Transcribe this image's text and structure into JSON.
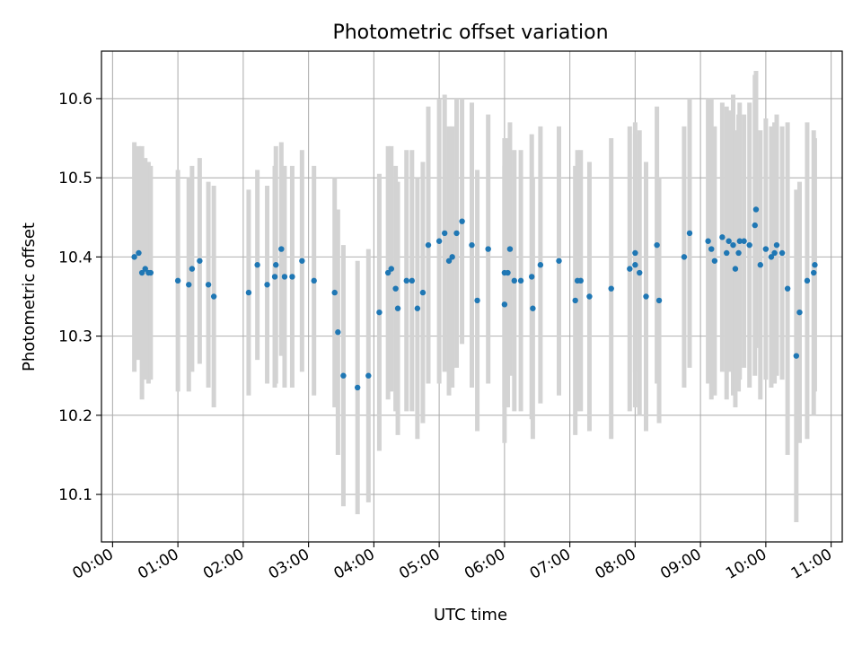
{
  "chart_data": {
    "type": "scatter",
    "title": "Photometric offset variation",
    "xlabel": "UTC time",
    "ylabel": "Photometric offset",
    "xlim": [
      "00:00",
      "11:00"
    ],
    "ylim": [
      10.04,
      10.66
    ],
    "grid": true,
    "x_ticks": [
      "00:00",
      "01:00",
      "02:00",
      "03:00",
      "04:00",
      "05:00",
      "06:00",
      "07:00",
      "08:00",
      "09:00",
      "10:00",
      "11:00"
    ],
    "y_ticks": [
      "10.1",
      "10.2",
      "10.3",
      "10.4",
      "10.5",
      "10.6"
    ],
    "colors": {
      "marker": "#1f77b4",
      "errorbar": "#d3d3d3",
      "grid": "#b0b0b0"
    },
    "series": [
      {
        "x": [
          "00:20",
          "00:24",
          "00:27",
          "00:30",
          "00:33",
          "00:35",
          "01:00",
          "01:10",
          "01:13",
          "01:20",
          "01:28",
          "01:33",
          "02:05",
          "02:13",
          "02:22",
          "02:29",
          "02:30",
          "02:35",
          "02:38",
          "02:45",
          "02:54",
          "03:05",
          "03:24",
          "03:27",
          "03:32",
          "03:45",
          "03:55",
          "04:05",
          "04:13",
          "04:16",
          "04:20",
          "04:22",
          "04:30",
          "04:35",
          "04:40",
          "04:45",
          "04:50",
          "05:00",
          "05:05",
          "05:09",
          "05:12",
          "05:16",
          "05:21",
          "05:30",
          "05:35",
          "05:45",
          "06:00",
          "06:00",
          "06:03",
          "06:05",
          "06:09",
          "06:15",
          "06:25",
          "06:26",
          "06:33",
          "06:50",
          "07:05",
          "07:07",
          "07:10",
          "07:18",
          "07:38",
          "07:55",
          "08:00",
          "08:00",
          "08:04",
          "08:10",
          "08:20",
          "08:22",
          "08:45",
          "08:50",
          "09:07",
          "09:10",
          "09:13",
          "09:20",
          "09:24",
          "09:26",
          "09:30",
          "09:32",
          "09:35",
          "09:36",
          "09:40",
          "09:45",
          "09:50",
          "09:51",
          "09:55",
          "10:00",
          "10:05",
          "10:08",
          "10:10",
          "10:15",
          "10:20",
          "10:28",
          "10:31",
          "10:38",
          "10:44",
          "10:45"
        ],
        "y": [
          10.4,
          10.405,
          10.38,
          10.385,
          10.38,
          10.38,
          10.37,
          10.365,
          10.385,
          10.395,
          10.365,
          10.35,
          10.355,
          10.39,
          10.365,
          10.375,
          10.39,
          10.41,
          10.375,
          10.375,
          10.395,
          10.37,
          10.355,
          10.305,
          10.25,
          10.235,
          10.25,
          10.33,
          10.38,
          10.385,
          10.36,
          10.335,
          10.37,
          10.37,
          10.335,
          10.355,
          10.415,
          10.42,
          10.43,
          10.395,
          10.4,
          10.43,
          10.445,
          10.415,
          10.345,
          10.41,
          10.38,
          10.34,
          10.38,
          10.41,
          10.37,
          10.37,
          10.375,
          10.335,
          10.39,
          10.395,
          10.345,
          10.37,
          10.37,
          10.35,
          10.36,
          10.385,
          10.39,
          10.405,
          10.38,
          10.35,
          10.415,
          10.345,
          10.4,
          10.43,
          10.42,
          10.41,
          10.395,
          10.425,
          10.405,
          10.42,
          10.415,
          10.385,
          10.405,
          10.42,
          10.42,
          10.415,
          10.44,
          10.46,
          10.39,
          10.41,
          10.4,
          10.405,
          10.415,
          10.405,
          10.36,
          10.275,
          10.33,
          10.37,
          10.38,
          10.39
        ],
        "yerr": [
          0.145,
          0.135,
          0.16,
          0.14,
          0.14,
          0.135,
          0.14,
          0.135,
          0.13,
          0.13,
          0.13,
          0.14,
          0.13,
          0.12,
          0.125,
          0.14,
          0.15,
          0.135,
          0.14,
          0.14,
          0.14,
          0.145,
          0.145,
          0.155,
          0.165,
          0.16,
          0.16,
          0.175,
          0.16,
          0.155,
          0.155,
          0.16,
          0.165,
          0.165,
          0.165,
          0.165,
          0.175,
          0.18,
          0.175,
          0.17,
          0.165,
          0.17,
          0.155,
          0.18,
          0.165,
          0.17,
          0.17,
          0.175,
          0.17,
          0.16,
          0.165,
          0.165,
          0.18,
          0.165,
          0.175,
          0.17,
          0.17,
          0.165,
          0.165,
          0.17,
          0.19,
          0.18,
          0.18,
          0.15,
          0.18,
          0.17,
          0.175,
          0.155,
          0.165,
          0.17,
          0.18,
          0.19,
          0.17,
          0.17,
          0.185,
          0.165,
          0.19,
          0.175,
          0.175,
          0.175,
          0.16,
          0.18,
          0.19,
          0.175,
          0.17,
          0.165,
          0.165,
          0.165,
          0.165,
          0.16,
          0.21,
          0.21,
          0.165,
          0.2,
          0.18,
          0.16
        ]
      }
    ]
  }
}
